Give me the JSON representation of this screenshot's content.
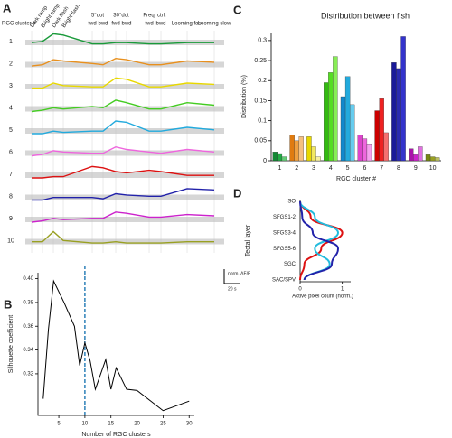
{
  "chart_data": [
    {
      "type": "traces",
      "panel": "A",
      "ylabel": "RGC cluster #",
      "stimuli": [
        "Dark ramp",
        "Bright ramp",
        "Dark flash",
        "Bright flash",
        "fwd",
        "bwd",
        "fwd",
        "bwd",
        "fwd",
        "bwd",
        "Looming fast",
        "Looming slow"
      ],
      "groups": [
        "5°dot",
        "30°dot",
        "Freq. ctrl."
      ],
      "scale_labels": [
        "norm. ΔF/F",
        "20 s"
      ],
      "series": [
        {
          "name": "1",
          "color": "#1a9a3a",
          "values": [
            0.2,
            0.3,
            0.9,
            0.8,
            0.1,
            0.1,
            0.2,
            0.2,
            0.1,
            0.1,
            0.2,
            0.2
          ]
        },
        {
          "name": "2",
          "color": "#e8901e",
          "values": [
            0.1,
            0.2,
            0.6,
            0.5,
            0.3,
            0.2,
            0.7,
            0.6,
            0.2,
            0.2,
            0.5,
            0.4
          ]
        },
        {
          "name": "3",
          "color": "#e8d800",
          "values": [
            0.1,
            0.1,
            0.5,
            0.3,
            0.2,
            0.2,
            0.9,
            0.8,
            0.2,
            0.2,
            0.5,
            0.4
          ]
        },
        {
          "name": "4",
          "color": "#44cc22",
          "values": [
            0,
            0.1,
            0.3,
            0.2,
            0.4,
            0.3,
            0.9,
            0.7,
            0.2,
            0.2,
            0.7,
            0.5
          ]
        },
        {
          "name": "5",
          "color": "#22aadd",
          "values": [
            0,
            0,
            0.2,
            0.1,
            0.2,
            0.2,
            1.0,
            0.9,
            0.2,
            0.2,
            0.5,
            0.3
          ]
        },
        {
          "name": "6",
          "color": "#ee66dd",
          "values": [
            0,
            0.1,
            0.4,
            0.3,
            0.2,
            0.2,
            0.7,
            0.5,
            0.3,
            0.2,
            0.5,
            0.3
          ]
        },
        {
          "name": "7",
          "color": "#dd1111",
          "values": [
            0,
            0,
            0.1,
            0.1,
            0.9,
            0.8,
            0.5,
            0.4,
            0.6,
            0.5,
            0.2,
            0.2
          ]
        },
        {
          "name": "8",
          "color": "#2222aa",
          "values": [
            0,
            0,
            0.2,
            0.2,
            0.2,
            0.1,
            0.5,
            0.4,
            0.3,
            0.3,
            0.9,
            0.8
          ]
        },
        {
          "name": "9",
          "color": "#cc22cc",
          "values": [
            0,
            0.1,
            0.3,
            0.2,
            0.3,
            0.3,
            0.8,
            0.7,
            0.4,
            0.4,
            0.6,
            0.5
          ]
        },
        {
          "name": "10",
          "color": "#99a022",
          "values": [
            0.2,
            0.2,
            1.0,
            0.3,
            0.1,
            0.1,
            0.2,
            0.1,
            0.1,
            0.1,
            0.2,
            0.2
          ]
        }
      ]
    },
    {
      "type": "line",
      "panel": "B",
      "xlabel": "Number of RGC clusters",
      "ylabel": "Silhouette coefficient",
      "x": [
        2,
        3,
        4,
        6,
        8,
        9,
        10,
        11,
        12,
        14,
        15,
        16,
        18,
        20,
        25,
        30
      ],
      "values": [
        0.299,
        0.357,
        0.398,
        0.38,
        0.36,
        0.327,
        0.346,
        0.331,
        0.307,
        0.332,
        0.307,
        0.325,
        0.307,
        0.306,
        0.289,
        0.297
      ],
      "color": "#000000",
      "vline": 10,
      "vline_color": "#1f77b4",
      "xlim": [
        1,
        31
      ],
      "xticks": [
        5,
        10,
        15,
        20,
        25,
        30
      ],
      "ylim": [
        0.285,
        0.405
      ],
      "yticks": [
        0.32,
        0.34,
        0.36,
        0.38,
        {
          "value": 0.4,
          "label": "0.40"
        }
      ]
    },
    {
      "type": "grouped_bar",
      "panel": "C",
      "title": "Distribution between fish",
      "xlabel": "RGC cluster #",
      "ylabel": "Distribution (%)",
      "categories": [
        "1",
        "2",
        "3",
        "4",
        "5",
        "6",
        "7",
        "8",
        "9",
        "10"
      ],
      "values": [
        [
          0.022,
          0.018,
          0.01
        ],
        [
          0.065,
          0.05,
          0.06
        ],
        [
          0.06,
          0.035,
          0.01
        ],
        [
          0.195,
          0.22,
          0.26
        ],
        [
          0.16,
          0.21,
          0.14
        ],
        [
          0.065,
          0.055,
          0.04
        ],
        [
          0.125,
          0.155,
          0.07
        ],
        [
          0.245,
          0.23,
          0.31
        ],
        [
          0.03,
          0.015,
          0.035
        ],
        [
          0.015,
          0.01,
          0.008
        ]
      ],
      "colors": [
        [
          "#118833",
          "#22aa44",
          "#66cc77"
        ],
        [
          "#e07b10",
          "#f0a040",
          "#f5c080"
        ],
        [
          "#e8d800",
          "#f2e860",
          "#f8f0a0"
        ],
        [
          "#33bb11",
          "#55dd22",
          "#88ee55"
        ],
        [
          "#1188cc",
          "#22aadd",
          "#66ccee"
        ],
        [
          "#dd44cc",
          "#ee66dd",
          "#f5a0ee"
        ],
        [
          "#cc0000",
          "#ee2222",
          "#f57070"
        ],
        [
          "#1a1a99",
          "#2a2ab0",
          "#3333cc"
        ],
        [
          "#aa11aa",
          "#cc22cc",
          "#e070e0"
        ],
        [
          "#778811",
          "#99a022",
          "#bbc060"
        ]
      ],
      "ylim": [
        0,
        0.32
      ],
      "yticks": [
        0,
        0.05,
        0.1,
        0.15,
        0.2,
        0.25,
        0.3
      ]
    },
    {
      "type": "profile",
      "panel": "D",
      "xlabel": "Active pixel count (norm.)",
      "ylabel": "Tectal layer",
      "categories": [
        "SO",
        "SFGS1-2",
        "SFGS3-4",
        "SFGS5-6",
        "SGC",
        "SAC/SPV"
      ],
      "series": [
        {
          "color": "#dd1111",
          "values": [
            0,
            0.25,
            1.0,
            0.5,
            0.1,
            0
          ]
        },
        {
          "color": "#22bbdd",
          "values": [
            0,
            0.35,
            0.9,
            0.35,
            0.7,
            0.1
          ]
        },
        {
          "color": "#2222aa",
          "values": [
            0,
            0.05,
            0.3,
            0.9,
            0.75,
            0.1
          ]
        }
      ],
      "xlim": [
        0,
        1.2
      ],
      "xticks": [
        0,
        1
      ]
    }
  ]
}
